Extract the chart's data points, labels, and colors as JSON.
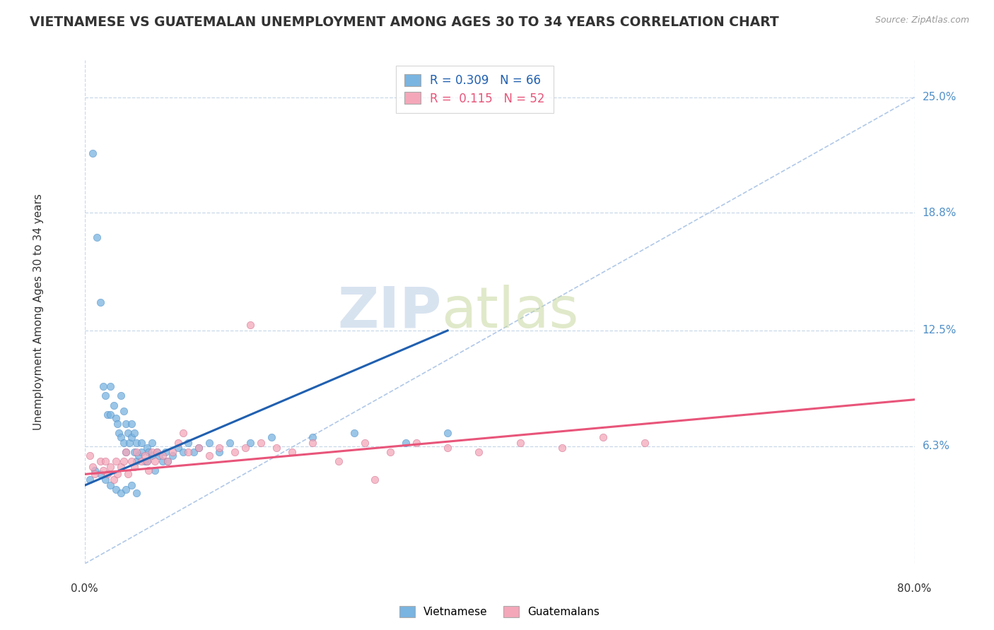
{
  "title": "VIETNAMESE VS GUATEMALAN UNEMPLOYMENT AMONG AGES 30 TO 34 YEARS CORRELATION CHART",
  "source": "Source: ZipAtlas.com",
  "ylabel": "Unemployment Among Ages 30 to 34 years",
  "xlim": [
    0.0,
    0.8
  ],
  "ylim": [
    0.0,
    0.27
  ],
  "ytick_values": [
    0.063,
    0.125,
    0.188,
    0.25
  ],
  "ytick_labels": [
    "6.3%",
    "12.5%",
    "18.8%",
    "25.0%"
  ],
  "watermark_zip": "ZIP",
  "watermark_atlas": "atlas",
  "viet_color": "#7ab4e0",
  "guat_color": "#f4a7b9",
  "viet_line_color": "#2060b0",
  "guat_line_color": "#e8557a",
  "diag_line_color": "#b0c8e8",
  "grid_color": "#c8d8e8",
  "background_color": "#ffffff",
  "legend_viet_label": "R = 0.309   N = 66",
  "legend_guat_label": "R =  0.115   N = 52",
  "viet_scatter_x": [
    0.008,
    0.012,
    0.015,
    0.018,
    0.02,
    0.022,
    0.025,
    0.025,
    0.028,
    0.03,
    0.032,
    0.033,
    0.035,
    0.035,
    0.038,
    0.038,
    0.04,
    0.04,
    0.042,
    0.043,
    0.045,
    0.045,
    0.048,
    0.048,
    0.05,
    0.05,
    0.052,
    0.055,
    0.055,
    0.058,
    0.06,
    0.06,
    0.062,
    0.065,
    0.065,
    0.068,
    0.07,
    0.072,
    0.075,
    0.078,
    0.08,
    0.085,
    0.09,
    0.095,
    0.1,
    0.105,
    0.11,
    0.12,
    0.13,
    0.14,
    0.16,
    0.18,
    0.22,
    0.26,
    0.31,
    0.35,
    0.005,
    0.01,
    0.015,
    0.02,
    0.025,
    0.03,
    0.035,
    0.04,
    0.045,
    0.05
  ],
  "viet_scatter_y": [
    0.22,
    0.175,
    0.14,
    0.095,
    0.09,
    0.08,
    0.08,
    0.095,
    0.085,
    0.078,
    0.075,
    0.07,
    0.068,
    0.09,
    0.082,
    0.065,
    0.06,
    0.075,
    0.07,
    0.065,
    0.068,
    0.075,
    0.06,
    0.07,
    0.055,
    0.065,
    0.058,
    0.06,
    0.065,
    0.055,
    0.062,
    0.055,
    0.06,
    0.058,
    0.065,
    0.05,
    0.06,
    0.058,
    0.055,
    0.06,
    0.055,
    0.058,
    0.062,
    0.06,
    0.065,
    0.06,
    0.062,
    0.065,
    0.06,
    0.065,
    0.065,
    0.068,
    0.068,
    0.07,
    0.065,
    0.07,
    0.045,
    0.05,
    0.048,
    0.045,
    0.042,
    0.04,
    0.038,
    0.04,
    0.042,
    0.038
  ],
  "guat_scatter_x": [
    0.005,
    0.008,
    0.01,
    0.015,
    0.018,
    0.02,
    0.022,
    0.025,
    0.028,
    0.03,
    0.032,
    0.035,
    0.038,
    0.04,
    0.042,
    0.045,
    0.048,
    0.05,
    0.055,
    0.058,
    0.06,
    0.062,
    0.065,
    0.068,
    0.07,
    0.075,
    0.08,
    0.085,
    0.09,
    0.1,
    0.11,
    0.12,
    0.13,
    0.145,
    0.155,
    0.17,
    0.185,
    0.2,
    0.22,
    0.245,
    0.27,
    0.295,
    0.32,
    0.35,
    0.38,
    0.42,
    0.46,
    0.5,
    0.54,
    0.16,
    0.28,
    0.095
  ],
  "guat_scatter_y": [
    0.058,
    0.052,
    0.048,
    0.055,
    0.05,
    0.055,
    0.048,
    0.052,
    0.045,
    0.055,
    0.048,
    0.052,
    0.055,
    0.06,
    0.048,
    0.055,
    0.052,
    0.06,
    0.055,
    0.058,
    0.055,
    0.05,
    0.06,
    0.055,
    0.06,
    0.058,
    0.055,
    0.06,
    0.065,
    0.06,
    0.062,
    0.058,
    0.062,
    0.06,
    0.062,
    0.065,
    0.062,
    0.06,
    0.065,
    0.055,
    0.065,
    0.06,
    0.065,
    0.062,
    0.06,
    0.065,
    0.062,
    0.068,
    0.065,
    0.128,
    0.045,
    0.07
  ],
  "viet_trend_x": [
    0.0,
    0.35
  ],
  "viet_trend_y": [
    0.042,
    0.125
  ],
  "guat_trend_x": [
    0.0,
    0.8
  ],
  "guat_trend_y": [
    0.048,
    0.088
  ]
}
